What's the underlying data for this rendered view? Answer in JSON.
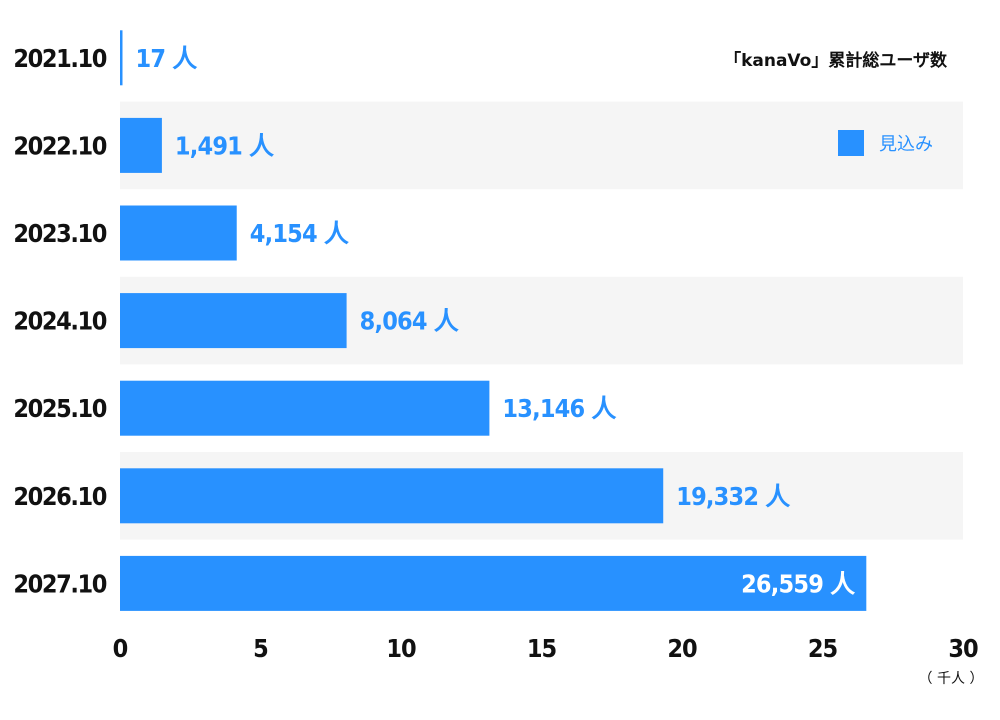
{
  "chart_data": {
    "type": "bar",
    "orientation": "horizontal",
    "title": "「kanaVo」累計総ユーザ数",
    "categories": [
      "2021.10",
      "2022.10",
      "2023.10",
      "2024.10",
      "2025.10",
      "2026.10",
      "2027.10"
    ],
    "series": [
      {
        "name": "見込み",
        "values": [
          17,
          1491,
          4154,
          8064,
          13146,
          19332,
          26559
        ],
        "labels": [
          "17 人",
          "1,491 人",
          "4,154 人",
          "8,064 人",
          "13,146 人",
          "19,332 人",
          "26,559 人"
        ]
      }
    ],
    "xticks": [
      "0",
      "5",
      "10",
      "15",
      "20",
      "25",
      "30"
    ],
    "xlim": [
      0,
      30000
    ],
    "unit_label": "（ 千人 ）",
    "grid": false,
    "row_banding": true,
    "legend_position": "top-right"
  },
  "colors": {
    "bar": "#2891ff",
    "band": "#f5f5f5",
    "axis_text": "#111111",
    "label_inside": "#ffffff"
  }
}
